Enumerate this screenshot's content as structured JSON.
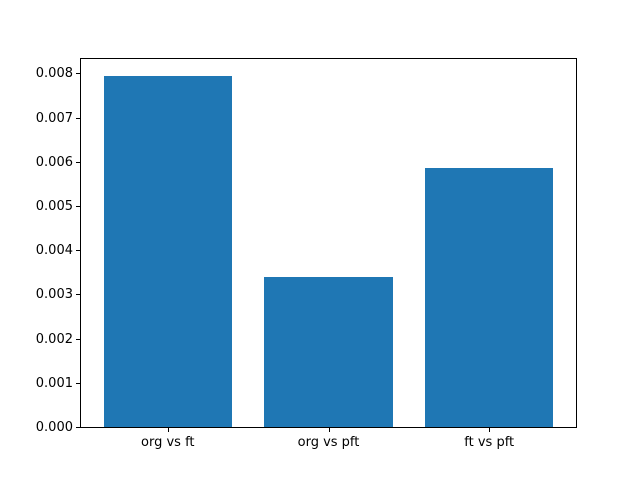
{
  "figure": {
    "background_color": "#ffffff",
    "text_color": "#000000",
    "title": ""
  },
  "chart_data": {
    "type": "bar",
    "categories": [
      "org vs ft",
      "org vs pft",
      "ft vs pft"
    ],
    "values": [
      0.00793,
      0.0034,
      0.00585
    ],
    "title": "",
    "xlabel": "",
    "ylabel": "",
    "ylim": [
      0,
      0.008324
    ],
    "xlim": [
      -0.54,
      2.54
    ],
    "yticks": [
      {
        "value": 0.0,
        "label": "0.000"
      },
      {
        "value": 0.001,
        "label": "0.001"
      },
      {
        "value": 0.002,
        "label": "0.002"
      },
      {
        "value": 0.003,
        "label": "0.003"
      },
      {
        "value": 0.004,
        "label": "0.004"
      },
      {
        "value": 0.005,
        "label": "0.005"
      },
      {
        "value": 0.006,
        "label": "0.006"
      },
      {
        "value": 0.007,
        "label": "0.007"
      },
      {
        "value": 0.008,
        "label": "0.008"
      }
    ],
    "bar_width": 0.8,
    "bar_color": "#1f77b4",
    "grid": false,
    "legend": null
  }
}
